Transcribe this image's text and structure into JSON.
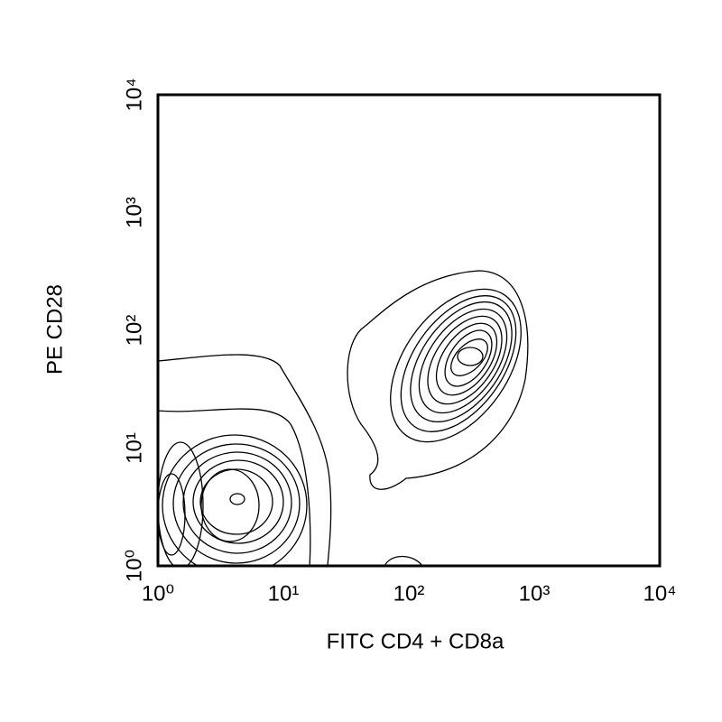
{
  "chart_data": {
    "type": "contour",
    "xlabel": "FITC CD4 + CD8a",
    "ylabel": "PE CD28",
    "xscale": "log",
    "yscale": "log",
    "xlim": [
      1,
      10000
    ],
    "ylim": [
      1,
      10000
    ],
    "xticks": [
      {
        "value": 1,
        "label": "10⁰"
      },
      {
        "value": 10,
        "label": "10¹"
      },
      {
        "value": 100,
        "label": "10²"
      },
      {
        "value": 1000,
        "label": "10³"
      },
      {
        "value": 10000,
        "label": "10⁴"
      }
    ],
    "yticks": [
      {
        "value": 1,
        "label": "10⁰"
      },
      {
        "value": 10,
        "label": "10¹"
      },
      {
        "value": 100,
        "label": "10²"
      },
      {
        "value": 1000,
        "label": "10³"
      },
      {
        "value": 10000,
        "label": "10⁴"
      }
    ]
  }
}
